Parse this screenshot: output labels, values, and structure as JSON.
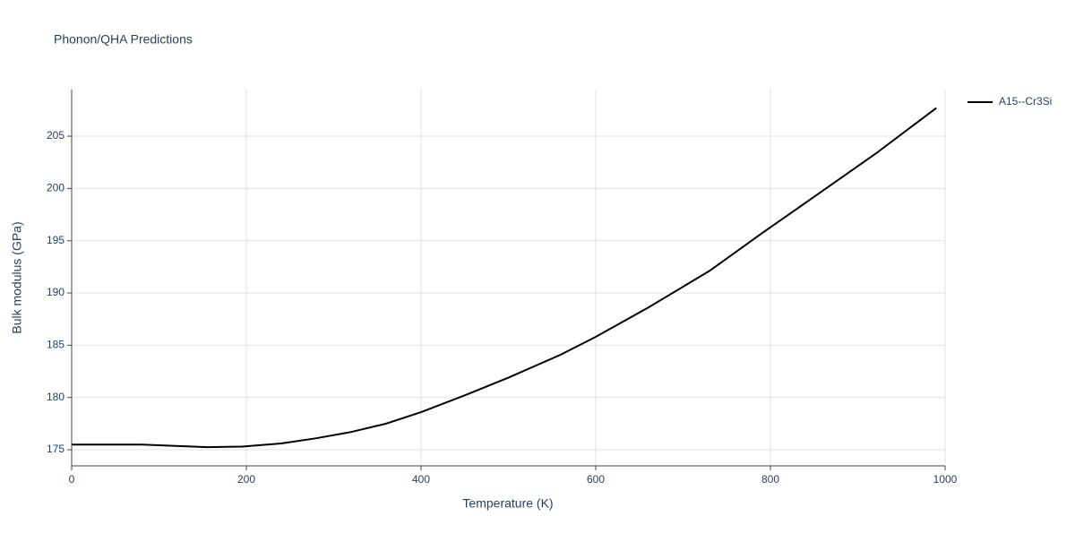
{
  "chart_data": {
    "type": "line",
    "title": "Phonon/QHA Predictions",
    "x_label": "Temperature (K)",
    "y_label": "Bulk modulus (GPa)",
    "x": [
      0,
      80,
      155,
      195,
      240,
      280,
      320,
      360,
      400,
      450,
      500,
      560,
      600,
      660,
      730,
      790,
      850,
      920,
      990
    ],
    "series": [
      {
        "name": "A15--Cr3Si",
        "color": "#000000",
        "values": [
          175.5,
          175.5,
          175.25,
          175.3,
          175.6,
          176.1,
          176.7,
          177.5,
          178.6,
          180.2,
          181.9,
          184.1,
          185.8,
          188.6,
          192.1,
          195.7,
          199.2,
          203.3,
          207.7
        ]
      }
    ],
    "xlim": [
      0,
      1000
    ],
    "xticks": [
      0,
      200,
      400,
      600,
      800,
      1000
    ],
    "ylim": [
      173.46,
      209.46
    ],
    "yticks": [
      175,
      180,
      185,
      190,
      195,
      200,
      205
    ],
    "grid": true,
    "legend": "right"
  }
}
